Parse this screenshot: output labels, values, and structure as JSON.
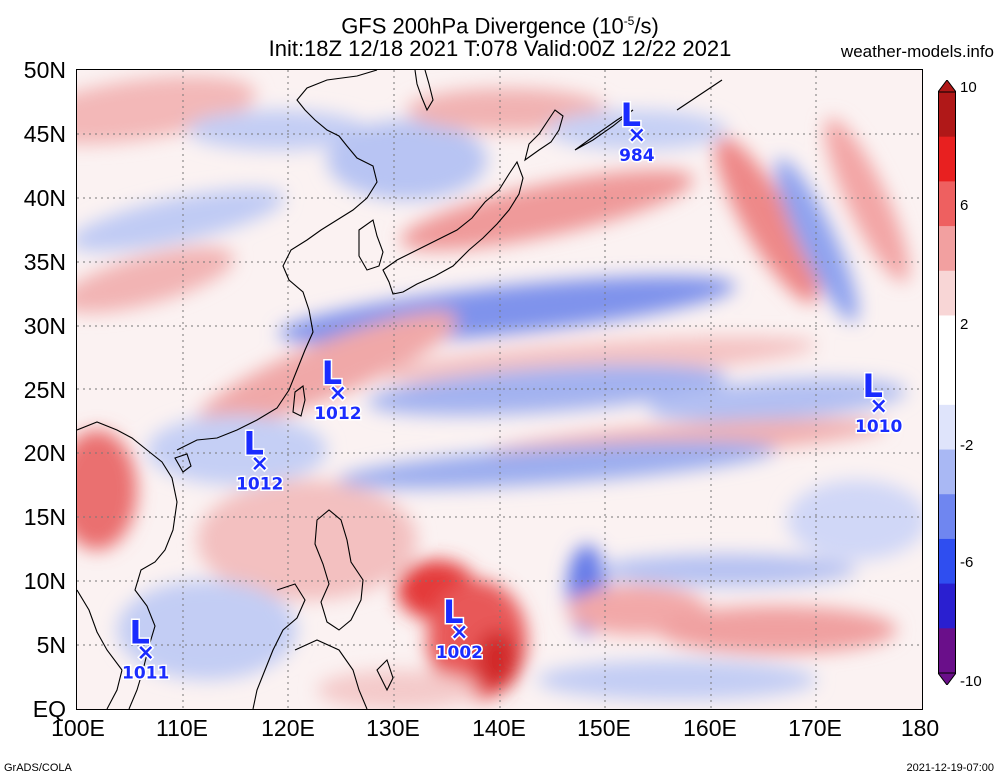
{
  "title_line1": "GFS 200hPa Divergence (10",
  "title_line1_sup": "-5",
  "title_line1_tail": "/s)",
  "title_line2": "Init:18Z 12/18 2021 T:078 Valid:00Z 12/22 2021",
  "site": "weather-models.info",
  "y_axis_labels": [
    "50N",
    "45N",
    "40N",
    "35N",
    "30N",
    "25N",
    "20N",
    "15N",
    "10N",
    "5N",
    "EQ"
  ],
  "x_axis_labels": [
    "100E",
    "110E",
    "120E",
    "130E",
    "140E",
    "150E",
    "160E",
    "170E",
    "180"
  ],
  "colorbar": {
    "labels": [
      "10",
      "6",
      "2",
      "-2",
      "-6",
      "-10"
    ],
    "colors": [
      "#6a0f8a",
      "#2a1fd0",
      "#2f4ef0",
      "#6f86f0",
      "#a9b8f4",
      "#dfe4fb",
      "#ffffff",
      "#ffffff",
      "#f8d6d6",
      "#f2a0a0",
      "#ee6060",
      "#e82020",
      "#b01818"
    ]
  },
  "lows": [
    {
      "letter": "L",
      "symbol": "×",
      "pressure": "984",
      "lon": 153,
      "lat": 45
    },
    {
      "letter": "L",
      "symbol": "×",
      "pressure": "1012",
      "lon": 124.7,
      "lat": 24.8
    },
    {
      "letter": "L",
      "symbol": "×",
      "pressure": "1012",
      "lon": 117.3,
      "lat": 19.3
    },
    {
      "letter": "L",
      "symbol": "×",
      "pressure": "1010",
      "lon": 175.9,
      "lat": 23.8
    },
    {
      "letter": "L",
      "symbol": "×",
      "pressure": "1011",
      "lon": 106.5,
      "lat": 4.5
    },
    {
      "letter": "L",
      "symbol": "×",
      "pressure": "1002",
      "lon": 136.2,
      "lat": 6.1
    }
  ],
  "footer_left": "GrADS/COLA",
  "footer_right": "2021-12-19-07:00"
}
